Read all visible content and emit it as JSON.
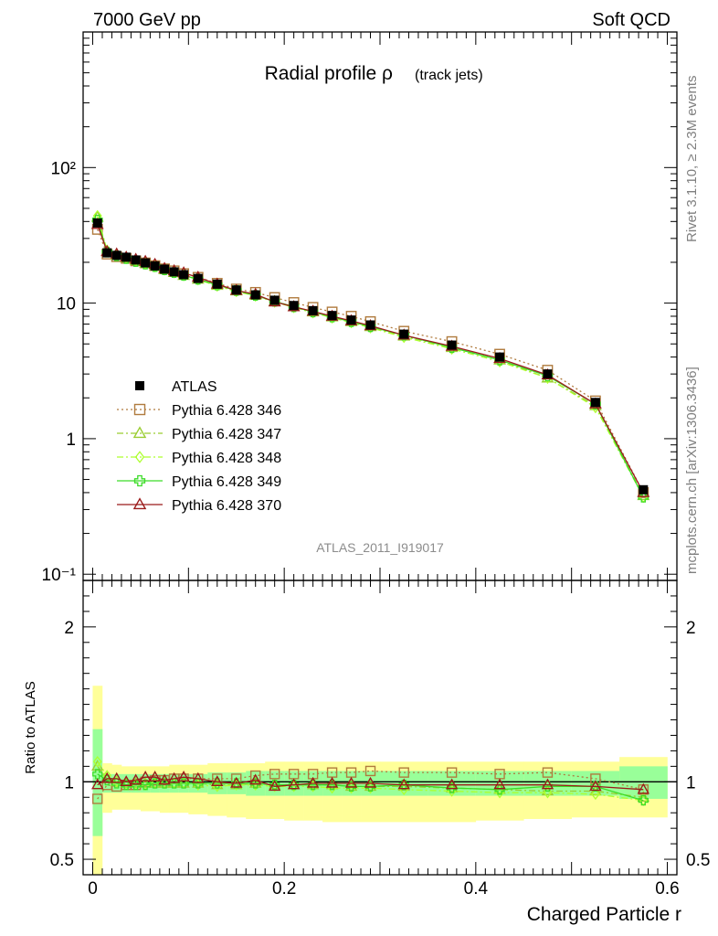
{
  "header": {
    "left": "7000 GeV pp",
    "right": "Soft QCD"
  },
  "side_labels": {
    "rivet": "Rivet 3.1.10, ≥ 2.3M events",
    "mcplots": "mcplots.cern.ch [arXiv:1306.3436]"
  },
  "chart_data": {
    "type": "line",
    "title": "Radial profile ρ",
    "title_note": "(track jets)",
    "analysis": "ATLAS_2011_I919017",
    "xlabel": "Charged Particle r",
    "ylabel_ratio": "Ratio to ATLAS",
    "xlim": [
      -0.01,
      0.61
    ],
    "ylim": [
      0.09,
      1000
    ],
    "yscale": "log",
    "ratio_ylim": [
      0.4,
      2.3
    ],
    "x_ticks": [
      "0",
      "0.2",
      "0.4",
      "0.6"
    ],
    "y_tick_labels": [
      "10⁻¹",
      "1",
      "10",
      "10²"
    ],
    "ratio_tick_labels": [
      "0.5",
      "1",
      "2"
    ],
    "legend_position": "bottom-left",
    "x": [
      0.005,
      0.015,
      0.025,
      0.035,
      0.045,
      0.055,
      0.065,
      0.075,
      0.085,
      0.095,
      0.11,
      0.13,
      0.15,
      0.17,
      0.19,
      0.21,
      0.23,
      0.25,
      0.27,
      0.29,
      0.325,
      0.375,
      0.425,
      0.475,
      0.525,
      0.575
    ],
    "x_bins": [
      0,
      0.01,
      0.02,
      0.03,
      0.04,
      0.05,
      0.06,
      0.07,
      0.08,
      0.09,
      0.1,
      0.12,
      0.14,
      0.16,
      0.18,
      0.2,
      0.22,
      0.24,
      0.26,
      0.28,
      0.3,
      0.35,
      0.4,
      0.45,
      0.5,
      0.55,
      0.6
    ],
    "series": [
      {
        "name": "ATLAS",
        "color": "#000000",
        "marker": "filled-square",
        "values": [
          39,
          23.5,
          22.5,
          21.8,
          20.8,
          19.8,
          18.8,
          17.8,
          17.0,
          16.2,
          15.2,
          13.8,
          12.5,
          11.5,
          10.5,
          9.6,
          8.8,
          8.1,
          7.5,
          6.9,
          5.9,
          4.9,
          4.0,
          3.0,
          1.85,
          0.42
        ]
      },
      {
        "name": "Pythia 6.428 346",
        "color": "#b07b3e",
        "marker": "open-square",
        "line": "dotted",
        "values": [
          35,
          23.0,
          22.0,
          21.4,
          20.5,
          19.8,
          18.9,
          17.9,
          17.3,
          16.5,
          15.5,
          14.0,
          12.7,
          12.0,
          11.0,
          10.1,
          9.3,
          8.6,
          8.0,
          7.3,
          6.2,
          5.2,
          4.2,
          3.2,
          1.9,
          0.4
        ]
      },
      {
        "name": "Pythia 6.428 347",
        "color": "#9acd32",
        "marker": "open-triangle",
        "line": "dash-dot",
        "values": [
          43,
          24.0,
          22.5,
          21.5,
          20.5,
          19.6,
          18.7,
          17.6,
          16.8,
          16.0,
          15.0,
          13.5,
          12.3,
          11.4,
          10.3,
          9.4,
          8.6,
          7.9,
          7.3,
          6.7,
          5.7,
          4.7,
          3.8,
          2.8,
          1.75,
          0.38
        ]
      },
      {
        "name": "Pythia 6.428 348",
        "color": "#adff2f",
        "marker": "open-diamond",
        "line": "dash-dot",
        "values": [
          44,
          24.5,
          22.5,
          21.4,
          20.4,
          19.5,
          18.6,
          17.6,
          16.8,
          16.0,
          14.9,
          13.4,
          12.2,
          11.3,
          10.2,
          9.3,
          8.5,
          7.8,
          7.2,
          6.6,
          5.6,
          4.6,
          3.7,
          2.8,
          1.7,
          0.37
        ]
      },
      {
        "name": "Pythia 6.428 349",
        "color": "#3cdc28",
        "marker": "open-cross",
        "line": "solid",
        "values": [
          41,
          23.8,
          22.3,
          21.3,
          20.3,
          19.4,
          18.6,
          17.6,
          16.8,
          16.0,
          15.0,
          13.6,
          12.4,
          11.4,
          10.3,
          9.4,
          8.6,
          7.9,
          7.3,
          6.7,
          5.8,
          4.7,
          3.8,
          2.9,
          1.8,
          0.37
        ]
      },
      {
        "name": "Pythia 6.428 370",
        "color": "#9b1b1b",
        "marker": "open-triangle",
        "line": "solid",
        "values": [
          38,
          24.0,
          23.0,
          21.8,
          21.0,
          20.3,
          19.3,
          18.0,
          17.3,
          16.7,
          15.5,
          13.8,
          12.4,
          11.6,
          10.2,
          9.4,
          8.7,
          8.0,
          7.4,
          6.8,
          5.8,
          4.8,
          3.9,
          2.95,
          1.8,
          0.4
        ]
      }
    ],
    "ratio_series": [
      {
        "name": "Pythia 6.428 346",
        "values": [
          0.89,
          0.98,
          0.97,
          0.98,
          0.98,
          1.0,
          1.01,
          1.01,
          1.02,
          1.02,
          1.02,
          1.02,
          1.02,
          1.04,
          1.05,
          1.05,
          1.05,
          1.06,
          1.06,
          1.07,
          1.06,
          1.06,
          1.05,
          1.06,
          1.02,
          0.95
        ]
      },
      {
        "name": "Pythia 6.428 347",
        "values": [
          1.1,
          1.02,
          1.0,
          0.99,
          0.99,
          0.99,
          0.99,
          0.99,
          0.99,
          0.99,
          0.99,
          0.98,
          0.98,
          0.99,
          0.98,
          0.98,
          0.98,
          0.98,
          0.97,
          0.97,
          0.97,
          0.96,
          0.95,
          0.94,
          0.94,
          0.9
        ]
      },
      {
        "name": "Pythia 6.428 348",
        "values": [
          1.13,
          1.04,
          1.0,
          0.98,
          0.98,
          0.98,
          0.99,
          0.99,
          0.99,
          0.99,
          0.98,
          0.97,
          0.98,
          0.98,
          0.97,
          0.97,
          0.97,
          0.96,
          0.96,
          0.96,
          0.95,
          0.94,
          0.93,
          0.93,
          0.92,
          0.88
        ]
      },
      {
        "name": "Pythia 6.428 349",
        "values": [
          1.05,
          1.01,
          0.99,
          0.98,
          0.98,
          0.98,
          0.99,
          0.99,
          0.99,
          0.99,
          0.99,
          0.99,
          0.99,
          0.99,
          0.98,
          0.98,
          0.98,
          0.98,
          0.97,
          0.97,
          0.98,
          0.96,
          0.95,
          0.97,
          0.97,
          0.88
        ]
      },
      {
        "name": "Pythia 6.428 370",
        "values": [
          0.98,
          1.02,
          1.02,
          1.0,
          1.01,
          1.03,
          1.03,
          1.01,
          1.02,
          1.03,
          1.02,
          1.0,
          0.99,
          1.01,
          0.97,
          0.98,
          0.99,
          0.99,
          0.99,
          0.99,
          0.98,
          0.98,
          0.98,
          0.98,
          0.97,
          0.95
        ]
      }
    ],
    "ratio_bands": {
      "inner_color": "#99ff99",
      "outer_color": "#ffff99",
      "inner_low": [
        0.65,
        0.93,
        0.93,
        0.93,
        0.93,
        0.93,
        0.93,
        0.93,
        0.93,
        0.93,
        0.93,
        0.92,
        0.92,
        0.91,
        0.91,
        0.91,
        0.91,
        0.91,
        0.91,
        0.91,
        0.91,
        0.91,
        0.91,
        0.91,
        0.91,
        0.89
      ],
      "inner_high": [
        1.34,
        1.05,
        1.05,
        1.05,
        1.05,
        1.05,
        1.05,
        1.05,
        1.05,
        1.05,
        1.05,
        1.06,
        1.06,
        1.07,
        1.07,
        1.07,
        1.07,
        1.07,
        1.07,
        1.07,
        1.07,
        1.07,
        1.07,
        1.07,
        1.07,
        1.1
      ],
      "outer_low": [
        0.4,
        0.8,
        0.82,
        0.82,
        0.82,
        0.81,
        0.81,
        0.8,
        0.8,
        0.8,
        0.79,
        0.78,
        0.77,
        0.76,
        0.76,
        0.75,
        0.75,
        0.74,
        0.74,
        0.74,
        0.74,
        0.74,
        0.75,
        0.76,
        0.77,
        0.77
      ],
      "outer_high": [
        1.62,
        1.12,
        1.11,
        1.1,
        1.1,
        1.1,
        1.1,
        1.1,
        1.11,
        1.11,
        1.11,
        1.12,
        1.12,
        1.12,
        1.13,
        1.13,
        1.13,
        1.13,
        1.13,
        1.13,
        1.13,
        1.13,
        1.13,
        1.13,
        1.13,
        1.16
      ]
    }
  }
}
